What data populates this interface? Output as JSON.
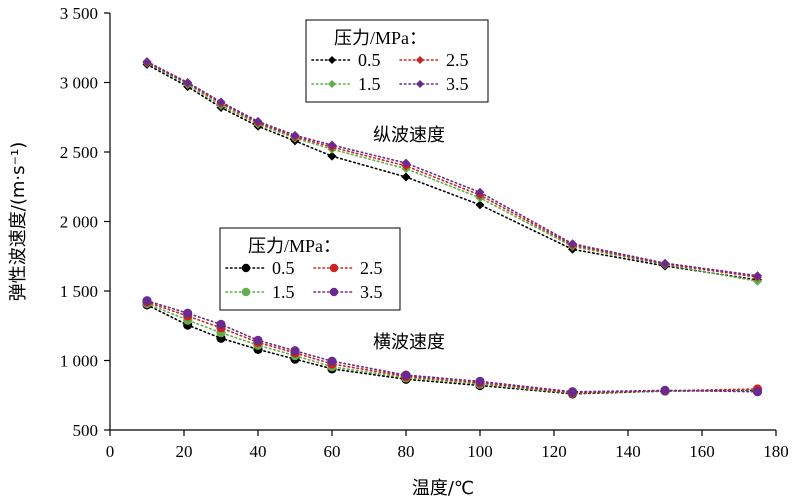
{
  "chart_data": {
    "type": "line",
    "xlabel": "温度/℃",
    "ylabel": "弹性波速度/(m·s⁻¹)",
    "xlim": [
      0,
      180
    ],
    "ylim": [
      500,
      3500
    ],
    "x_ticks": [
      "0",
      "20",
      "40",
      "60",
      "80",
      "100",
      "120",
      "140",
      "160",
      "180"
    ],
    "y_ticks": [
      "500",
      "1 000",
      "1 500",
      "2 000",
      "2 500",
      "3 000",
      "3 500"
    ],
    "grid": false,
    "x": [
      10,
      21,
      30,
      40,
      50,
      60,
      80,
      100,
      125,
      150,
      175
    ],
    "groups": [
      {
        "annotation": "纵波速度",
        "legend": {
          "title": "压力/MPa：",
          "marker": "diamond"
        },
        "series": [
          {
            "name": "0.5",
            "color": "#000000",
            "values": [
              3130,
              2970,
              2820,
              2685,
              2580,
              2470,
              2320,
              2120,
              1800,
              1680,
              1580
            ]
          },
          {
            "name": "1.5",
            "color": "#5fae4a",
            "values": [
              3140,
              2985,
              2835,
              2700,
              2600,
              2520,
              2380,
              2170,
              1820,
              1690,
              1570
            ]
          },
          {
            "name": "2.5",
            "color": "#d0221e",
            "values": [
              3145,
              2995,
              2850,
              2710,
              2610,
              2535,
              2400,
              2190,
              1830,
              1695,
              1600
            ]
          },
          {
            "name": "3.5",
            "color": "#6b2a8f",
            "values": [
              3150,
              3000,
              2860,
              2720,
              2620,
              2550,
              2420,
              2210,
              1840,
              1700,
              1610
            ]
          }
        ]
      },
      {
        "annotation": "横波速度",
        "legend": {
          "title": "压力/MPa：",
          "marker": "circle"
        },
        "series": [
          {
            "name": "0.5",
            "color": "#000000",
            "values": [
              1400,
              1255,
              1160,
              1080,
              1010,
              940,
              865,
              820,
              760,
              780,
              785
            ]
          },
          {
            "name": "1.5",
            "color": "#5fae4a",
            "values": [
              1410,
              1290,
              1200,
              1110,
              1035,
              955,
              875,
              830,
              765,
              780,
              790
            ]
          },
          {
            "name": "2.5",
            "color": "#d0221e",
            "values": [
              1420,
              1320,
              1235,
              1130,
              1055,
              975,
              885,
              840,
              768,
              782,
              795
            ]
          },
          {
            "name": "3.5",
            "color": "#6b2a8f",
            "values": [
              1430,
              1340,
              1260,
              1145,
              1070,
              995,
              895,
              850,
              775,
              785,
              775
            ]
          }
        ]
      }
    ]
  }
}
